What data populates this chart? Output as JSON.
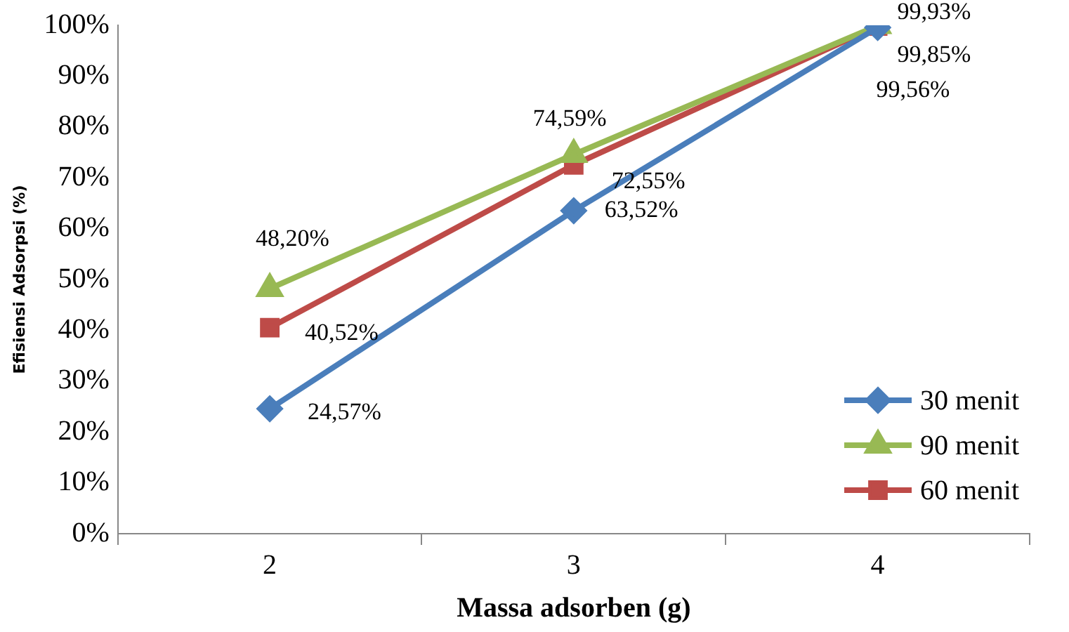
{
  "chart_data": {
    "type": "line",
    "xlabel": "Massa adsorben (g)",
    "ylabel": "Efisiensi Adsorpsi (%)",
    "categories": [
      "2",
      "3",
      "4"
    ],
    "series": [
      {
        "name": "30 menit",
        "color": "#4a7ebb",
        "marker": "diamond",
        "values": [
          24.57,
          63.52,
          99.56
        ],
        "value_labels": [
          "24,57%",
          "63,52%",
          "99,56%"
        ]
      },
      {
        "name": "90 menit",
        "color": "#98b954",
        "marker": "triangle",
        "values": [
          48.2,
          74.59,
          99.93
        ],
        "value_labels": [
          "48,20%",
          "74,59%",
          "99,93%"
        ]
      },
      {
        "name": "60 menit",
        "color": "#be4b48",
        "marker": "square",
        "values": [
          40.52,
          72.55,
          99.85
        ],
        "value_labels": [
          "40,52%",
          "72,55%",
          "99,85%"
        ]
      }
    ],
    "ylim": [
      0,
      100
    ],
    "yticks": [
      {
        "value": 0,
        "label": "0%"
      },
      {
        "value": 10,
        "label": "10%"
      },
      {
        "value": 20,
        "label": "20%"
      },
      {
        "value": 30,
        "label": "30%"
      },
      {
        "value": 40,
        "label": "40%"
      },
      {
        "value": 50,
        "label": "50%"
      },
      {
        "value": 60,
        "label": "60%"
      },
      {
        "value": 70,
        "label": "70%"
      },
      {
        "value": 80,
        "label": "80%"
      },
      {
        "value": 90,
        "label": "90%"
      },
      {
        "value": 100,
        "label": "100%"
      }
    ],
    "grid": false,
    "legend": "bottom right",
    "line_style": "solid"
  }
}
